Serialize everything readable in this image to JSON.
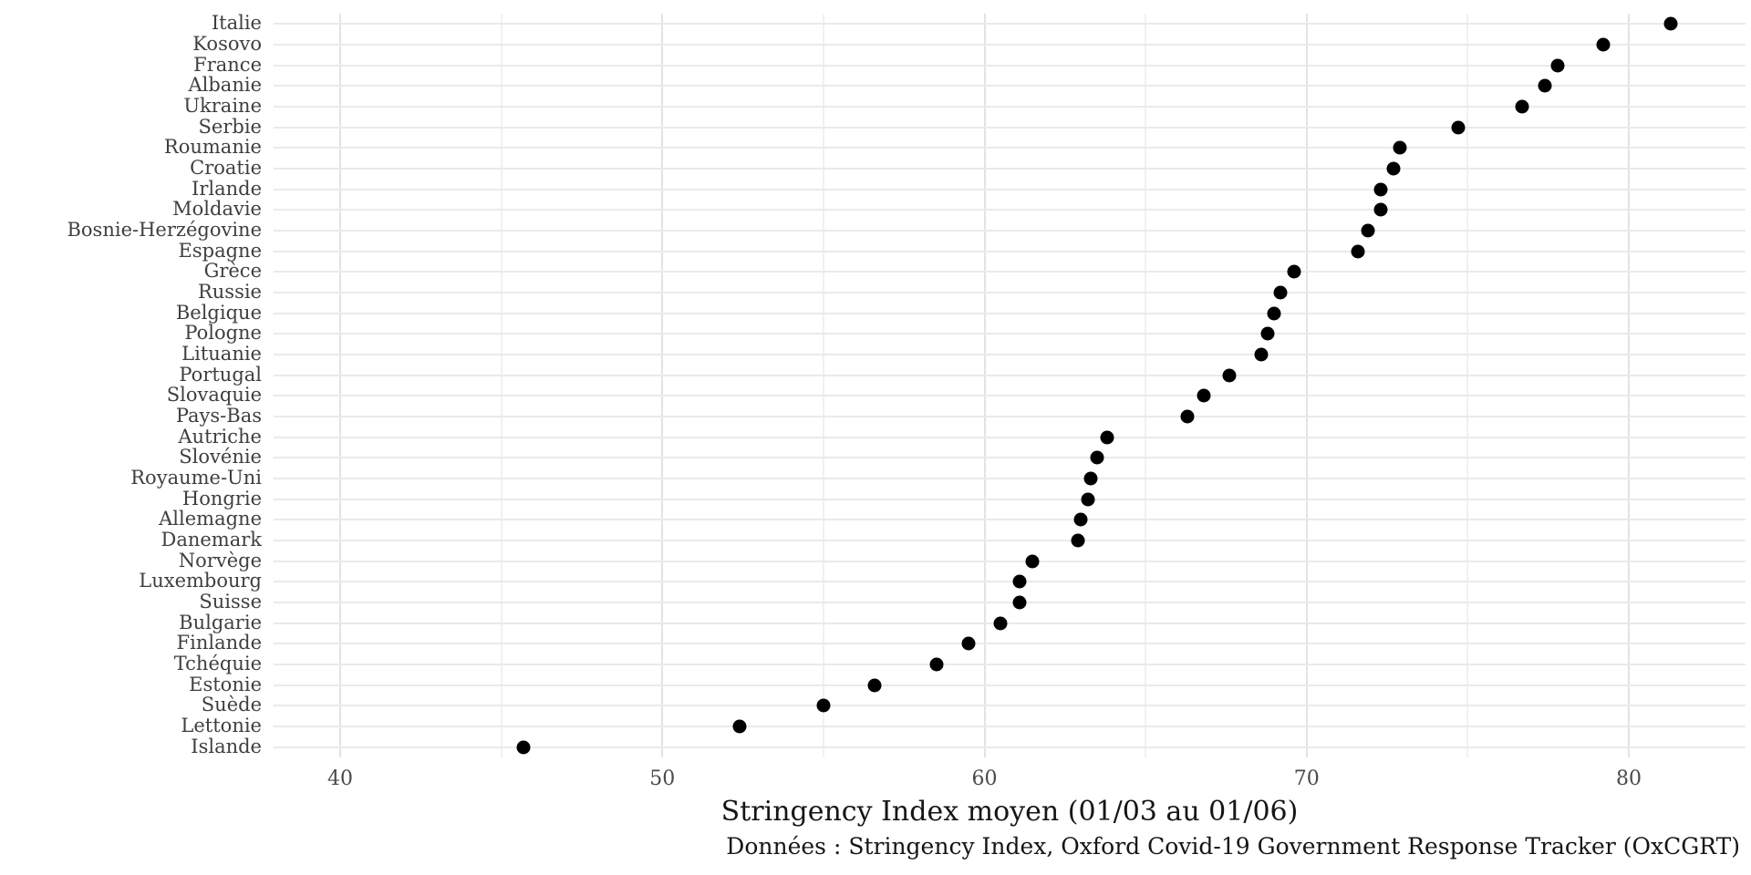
{
  "chart_data": {
    "type": "scatter",
    "variant": "cleveland-dot-plot",
    "orientation": "horizontal",
    "title": "",
    "xlabel": "Stringency Index moyen (01/03 au 01/06)",
    "ylabel": "",
    "caption": "Données : Stringency Index, Oxford Covid-19 Government Response Tracker (OxCGRT)",
    "categories": [
      "Italie",
      "Kosovo",
      "France",
      "Albanie",
      "Ukraine",
      "Serbie",
      "Roumanie",
      "Croatie",
      "Irlande",
      "Moldavie",
      "Bosnie-Herzégovine",
      "Espagne",
      "Grèce",
      "Russie",
      "Belgique",
      "Pologne",
      "Lituanie",
      "Portugal",
      "Slovaquie",
      "Pays-Bas",
      "Autriche",
      "Slovénie",
      "Royaume-Uni",
      "Hongrie",
      "Allemagne",
      "Danemark",
      "Norvège",
      "Luxembourg",
      "Suisse",
      "Bulgarie",
      "Finlande",
      "Tchéquie",
      "Estonie",
      "Suède",
      "Lettonie",
      "Islande"
    ],
    "values": [
      81.3,
      79.2,
      77.8,
      77.4,
      76.7,
      74.7,
      72.9,
      72.7,
      72.3,
      72.3,
      71.9,
      71.6,
      69.6,
      69.2,
      69.0,
      68.8,
      68.6,
      67.6,
      66.8,
      66.3,
      63.8,
      63.5,
      63.3,
      63.2,
      63.0,
      62.9,
      61.5,
      61.1,
      61.1,
      60.5,
      59.5,
      58.5,
      56.6,
      55.0,
      52.4,
      45.7
    ],
    "xlim": [
      36.9,
      83.7
    ],
    "xticks_major": [
      40,
      50,
      60,
      70,
      80
    ],
    "xticks_minor": [
      45,
      55,
      65,
      75
    ],
    "grid": true,
    "legend": "none",
    "point_color": "#000000",
    "grid_major_color": "#e3e3e3",
    "grid_minor_color": "#f1f1f1",
    "axis_text_color": "#4a4a4a",
    "label_text_color": "#3f3f3f",
    "title_text_color": "#151515",
    "background_color": "#ffffff"
  }
}
